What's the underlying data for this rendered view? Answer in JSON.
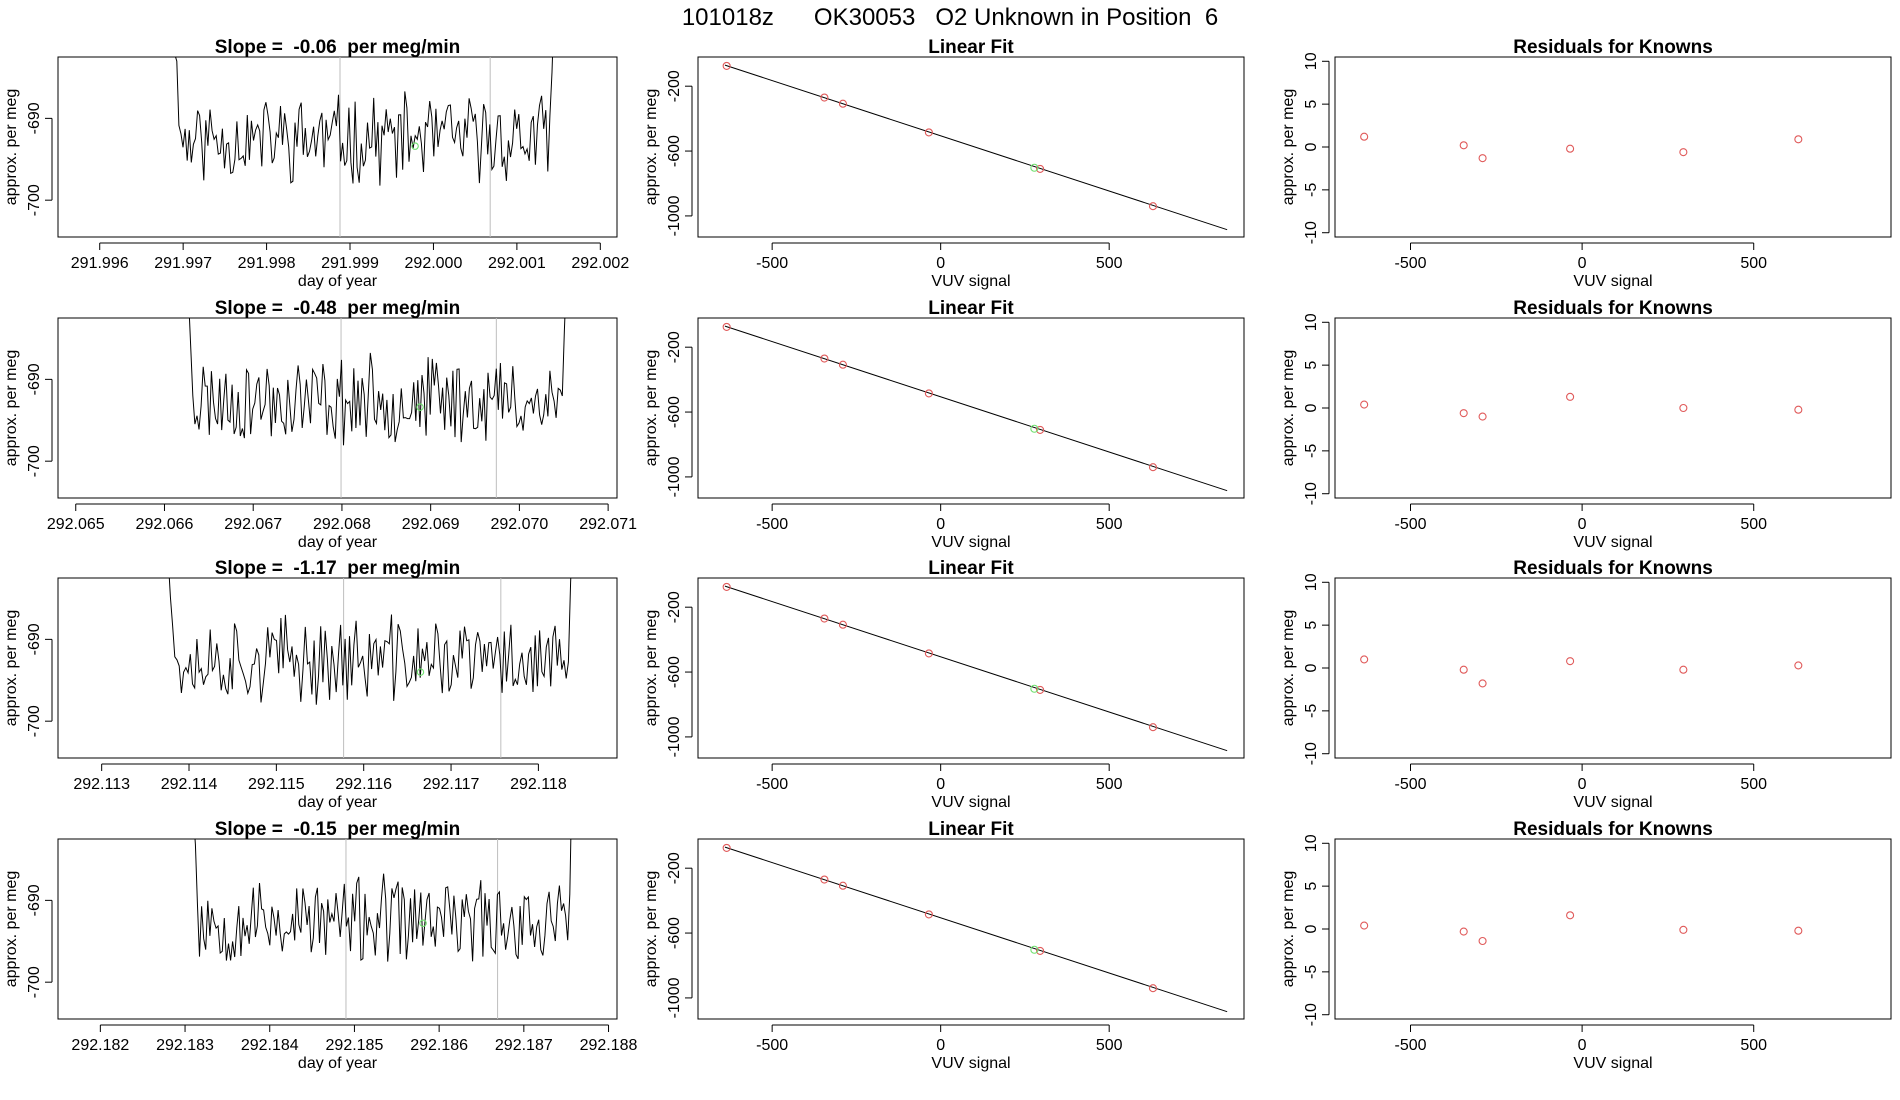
{
  "page_title": "101018z      OK30053   O2 Unknown in Position  6",
  "colors": {
    "series_line": "#000000",
    "marker_known": "#e05a5a",
    "marker_unknown": "#6ee06e",
    "vline": "#bebebe",
    "frame": "#000000"
  },
  "chart_data": [
    {
      "id": "ts1",
      "type": "line",
      "title": "Slope =  -0.06  per meg/min",
      "xlabel": "day of year",
      "ylabel": "approx. per meg",
      "xlim": [
        291.9955,
        292.0022
      ],
      "ylim": [
        -704.5,
        -682.5
      ],
      "xticks": [
        "291.996",
        "291.997",
        "291.998",
        "291.999",
        "292.000",
        "292.001",
        "292.002"
      ],
      "yticks": [
        -690,
        -700
      ],
      "ytick_labels": [
        "-690",
        "-700"
      ],
      "vlines": [
        291.99888,
        292.00068
      ],
      "unknown_point": {
        "x": 291.99978,
        "y": -693.4
      },
      "start": 291.9968,
      "end": 292.00152,
      "seed": 11
    },
    {
      "id": "fit1",
      "type": "scatter",
      "title": "Linear Fit",
      "xlabel": "VUV signal",
      "ylabel": "approx. per meg",
      "xlim": [
        -720,
        900
      ],
      "ylim": [
        -1130,
        -20
      ],
      "xticks": [
        -500,
        0,
        500
      ],
      "xtick_labels": [
        "-500",
        "0",
        "500"
      ],
      "yticks": [
        -200,
        -600,
        -1000
      ],
      "ytick_labels": [
        "-200",
        "-600",
        "-1000"
      ],
      "fit_line": [
        [
          -640,
          -70
        ],
        [
          850,
          -1085
        ]
      ],
      "known_points": [
        [
          -635,
          -75
        ],
        [
          -345,
          -270
        ],
        [
          -290,
          -308
        ],
        [
          -35,
          -485
        ],
        [
          295,
          -710
        ],
        [
          630,
          -940
        ]
      ],
      "unknown_point": [
        278,
        -703
      ]
    },
    {
      "id": "res1",
      "type": "scatter",
      "title": "Residuals for Knowns",
      "xlabel": "VUV signal",
      "ylabel": "approx. per meg",
      "xlim": [
        -720,
        900
      ],
      "ylim": [
        -10.5,
        10.5
      ],
      "xticks": [
        -500,
        0,
        500
      ],
      "xtick_labels": [
        "-500",
        "0",
        "500"
      ],
      "yticks": [
        10,
        5,
        0,
        -5,
        -10
      ],
      "ytick_labels": [
        "10",
        "5",
        "0",
        "-5",
        "-10"
      ],
      "points": [
        [
          -635,
          1.2
        ],
        [
          -345,
          0.2
        ],
        [
          -290,
          -1.3
        ],
        [
          -35,
          -0.2
        ],
        [
          295,
          -0.6
        ],
        [
          630,
          0.9
        ]
      ]
    },
    {
      "id": "ts2",
      "type": "line",
      "title": "Slope =  -0.48  per meg/min",
      "xlabel": "day of year",
      "ylabel": "approx. per meg",
      "xlim": [
        292.0648,
        292.0711
      ],
      "ylim": [
        -704.5,
        -682.5
      ],
      "xticks": [
        "292.065",
        "292.066",
        "292.067",
        "292.068",
        "292.069",
        "292.070",
        "292.071"
      ],
      "yticks": [
        -690,
        -700
      ],
      "ytick_labels": [
        "-690",
        "-700"
      ],
      "vlines": [
        292.06799,
        292.06974
      ],
      "unknown_point": {
        "x": 292.06888,
        "y": -693.4
      },
      "start": 292.06618,
      "end": 292.0706,
      "seed": 23
    },
    {
      "id": "fit2",
      "type": "scatter",
      "title": "Linear Fit",
      "xlabel": "VUV signal",
      "ylabel": "approx. per meg",
      "xlim": [
        -720,
        900
      ],
      "ylim": [
        -1130,
        -20
      ],
      "xticks": [
        -500,
        0,
        500
      ],
      "xtick_labels": [
        "-500",
        "0",
        "500"
      ],
      "yticks": [
        -200,
        -600,
        -1000
      ],
      "ytick_labels": [
        "-200",
        "-600",
        "-1000"
      ],
      "fit_line": [
        [
          -640,
          -70
        ],
        [
          850,
          -1085
        ]
      ],
      "known_points": [
        [
          -635,
          -75
        ],
        [
          -345,
          -270
        ],
        [
          -290,
          -308
        ],
        [
          -35,
          -485
        ],
        [
          295,
          -710
        ],
        [
          630,
          -940
        ]
      ],
      "unknown_point": [
        278,
        -703
      ]
    },
    {
      "id": "res2",
      "type": "scatter",
      "title": "Residuals for Knowns",
      "xlabel": "VUV signal",
      "ylabel": "approx. per meg",
      "xlim": [
        -720,
        900
      ],
      "ylim": [
        -10.5,
        10.5
      ],
      "xticks": [
        -500,
        0,
        500
      ],
      "xtick_labels": [
        "-500",
        "0",
        "500"
      ],
      "yticks": [
        10,
        5,
        0,
        -5,
        -10
      ],
      "ytick_labels": [
        "10",
        "5",
        "0",
        "-5",
        "-10"
      ],
      "points": [
        [
          -635,
          0.4
        ],
        [
          -345,
          -0.6
        ],
        [
          -290,
          -1.0
        ],
        [
          -35,
          1.3
        ],
        [
          295,
          0.0
        ],
        [
          630,
          -0.2
        ]
      ]
    },
    {
      "id": "ts3",
      "type": "line",
      "title": "Slope =  -1.17  per meg/min",
      "xlabel": "day of year",
      "ylabel": "approx. per meg",
      "xlim": [
        292.1125,
        292.1189
      ],
      "ylim": [
        -704.5,
        -682.5
      ],
      "xticks": [
        "292.113",
        "292.114",
        "292.115",
        "292.116",
        "292.117",
        "292.118"
      ],
      "yticks": [
        -690,
        -700
      ],
      "ytick_labels": [
        "-690",
        "-700"
      ],
      "vlines": [
        292.11577,
        292.11757
      ],
      "unknown_point": {
        "x": 292.11665,
        "y": -694.0
      },
      "start": 292.11366,
      "end": 292.11847,
      "seed": 37
    },
    {
      "id": "fit3",
      "type": "scatter",
      "title": "Linear Fit",
      "xlabel": "VUV signal",
      "ylabel": "approx. per meg",
      "xlim": [
        -720,
        900
      ],
      "ylim": [
        -1130,
        -20
      ],
      "xticks": [
        -500,
        0,
        500
      ],
      "xtick_labels": [
        "-500",
        "0",
        "500"
      ],
      "yticks": [
        -200,
        -600,
        -1000
      ],
      "ytick_labels": [
        "-200",
        "-600",
        "-1000"
      ],
      "fit_line": [
        [
          -640,
          -70
        ],
        [
          850,
          -1085
        ]
      ],
      "known_points": [
        [
          -635,
          -75
        ],
        [
          -345,
          -270
        ],
        [
          -290,
          -308
        ],
        [
          -35,
          -485
        ],
        [
          295,
          -710
        ],
        [
          630,
          -940
        ]
      ],
      "unknown_point": [
        278,
        -703
      ]
    },
    {
      "id": "res3",
      "type": "scatter",
      "title": "Residuals for Knowns",
      "xlabel": "VUV signal",
      "ylabel": "approx. per meg",
      "xlim": [
        -720,
        900
      ],
      "ylim": [
        -10.5,
        10.5
      ],
      "xticks": [
        -500,
        0,
        500
      ],
      "xtick_labels": [
        "-500",
        "0",
        "500"
      ],
      "yticks": [
        10,
        5,
        0,
        -5,
        -10
      ],
      "ytick_labels": [
        "10",
        "5",
        "0",
        "-5",
        "-10"
      ],
      "points": [
        [
          -635,
          1.0
        ],
        [
          -345,
          -0.2
        ],
        [
          -290,
          -1.8
        ],
        [
          -35,
          0.8
        ],
        [
          295,
          -0.2
        ],
        [
          630,
          0.3
        ]
      ]
    },
    {
      "id": "ts4",
      "type": "line",
      "title": "Slope =  -0.15  per meg/min",
      "xlabel": "day of year",
      "ylabel": "approx. per meg",
      "xlim": [
        292.1815,
        292.1881
      ],
      "ylim": [
        -704.5,
        -682.5
      ],
      "xticks": [
        "292.182",
        "292.183",
        "292.184",
        "292.185",
        "292.186",
        "292.187",
        "292.188"
      ],
      "yticks": [
        -690,
        -700
      ],
      "ytick_labels": [
        "-690",
        "-700"
      ],
      "vlines": [
        292.1849,
        292.18669
      ],
      "unknown_point": {
        "x": 292.18581,
        "y": -692.8
      },
      "start": 292.183,
      "end": 292.18764,
      "seed": 53
    },
    {
      "id": "fit4",
      "type": "scatter",
      "title": "Linear Fit",
      "xlabel": "VUV signal",
      "ylabel": "approx. per meg",
      "xlim": [
        -720,
        900
      ],
      "ylim": [
        -1130,
        -20
      ],
      "xticks": [
        -500,
        0,
        500
      ],
      "xtick_labels": [
        "-500",
        "0",
        "500"
      ],
      "yticks": [
        -200,
        -600,
        -1000
      ],
      "ytick_labels": [
        "-200",
        "-600",
        "-1000"
      ],
      "fit_line": [
        [
          -640,
          -70
        ],
        [
          850,
          -1085
        ]
      ],
      "known_points": [
        [
          -635,
          -75
        ],
        [
          -345,
          -270
        ],
        [
          -290,
          -308
        ],
        [
          -35,
          -485
        ],
        [
          295,
          -710
        ],
        [
          630,
          -940
        ]
      ],
      "unknown_point": [
        278,
        -703
      ]
    },
    {
      "id": "res4",
      "type": "scatter",
      "title": "Residuals for Knowns",
      "xlabel": "VUV signal",
      "ylabel": "approx. per meg",
      "xlim": [
        -720,
        900
      ],
      "ylim": [
        -10.5,
        10.5
      ],
      "xticks": [
        -500,
        0,
        500
      ],
      "xtick_labels": [
        "-500",
        "0",
        "500"
      ],
      "yticks": [
        10,
        5,
        0,
        -5,
        -10
      ],
      "ytick_labels": [
        "10",
        "5",
        "0",
        "-5",
        "-10"
      ],
      "points": [
        [
          -635,
          0.4
        ],
        [
          -345,
          -0.3
        ],
        [
          -290,
          -1.4
        ],
        [
          -35,
          1.6
        ],
        [
          295,
          -0.1
        ],
        [
          630,
          -0.2
        ]
      ]
    }
  ]
}
